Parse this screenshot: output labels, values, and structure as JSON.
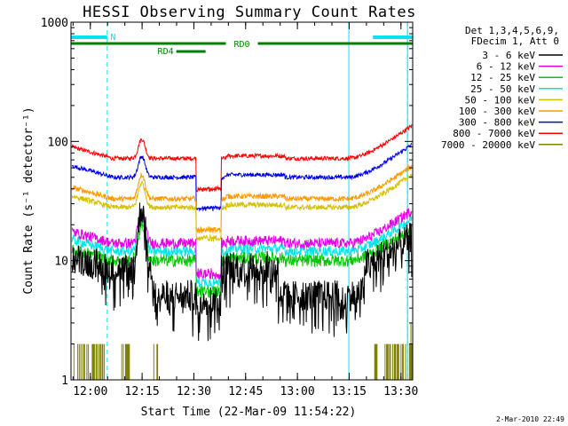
{
  "chart_data": {
    "type": "line",
    "title": "HESSI Observing Summary Count Rates",
    "xlabel": "Start Time (22-Mar-09 11:54:22)",
    "ylabel": "Count Rate (s⁻¹ detector⁻¹)",
    "yscale": "log",
    "ylim": [
      1,
      1000
    ],
    "xlim_minutes": [
      0,
      99
    ],
    "x_tick_labels": [
      "12:00",
      "12:15",
      "12:30",
      "12:45",
      "13:00",
      "13:15",
      "13:30"
    ],
    "x_tick_minutes": [
      5.6,
      20.6,
      35.6,
      50.6,
      65.6,
      80.6,
      95.6
    ],
    "y_tick_labels": [
      "1",
      "10",
      "100",
      "1000"
    ],
    "y_tick_values": [
      1,
      10,
      100,
      1000
    ],
    "legend_header": [
      "Det 1,3,4,5,6,9,",
      "FDecim 1, Att 0"
    ],
    "legend_position": "right",
    "series": [
      {
        "name": "3 - 6 keV",
        "color": "#000000",
        "level": 8.5,
        "noise": 0.3,
        "peak": 3.2,
        "quiet_drop": 0.6
      },
      {
        "name": "6 - 12 keV",
        "color": "#e600e6",
        "level": 14,
        "noise": 0.1,
        "peak": 1.8
      },
      {
        "name": "12 - 25 keV",
        "color": "#00c800",
        "level": 10,
        "noise": 0.12,
        "peak": 2.0
      },
      {
        "name": "25 - 50 keV",
        "color": "#00e6e6",
        "level": 12,
        "noise": 0.1,
        "peak": 1.8
      },
      {
        "name": "50 - 100 keV",
        "color": "#d4c000",
        "level": 28,
        "noise": 0.05,
        "peak": 1.6
      },
      {
        "name": "100 - 300 keV",
        "color": "#ff9900",
        "level": 33,
        "noise": 0.05,
        "peak": 1.6
      },
      {
        "name": "300 - 800 keV",
        "color": "#0000e6",
        "level": 50,
        "noise": 0.04,
        "peak": 1.5
      },
      {
        "name": "800 - 7000 keV",
        "color": "#ff0000",
        "level": 72,
        "noise": 0.04,
        "peak": 1.45
      },
      {
        "name": "7000 - 20000 keV",
        "color": "#808000",
        "level": 1,
        "noise": 0,
        "peak": 1
      }
    ],
    "flare_peak_minute": 20.5,
    "gap_minutes": [
      36.5,
      43.5
    ],
    "night_segments_minutes": [
      [
        0,
        10.5
      ],
      [
        87.5,
        99
      ]
    ],
    "night_label": "N",
    "night_color": "#00e6e6",
    "night_boundary_minutes": [
      10.5,
      97.5
    ],
    "saa_boundary_minutes": [
      80.5,
      97.5
    ],
    "rd0_segment_minutes": [
      0,
      99
    ],
    "rd0_label": "RD0",
    "rd4_segment_minutes": [
      30.5,
      39
    ],
    "rd4_label": "RD4",
    "rd_color": "#008000"
  },
  "footer": {
    "timestamp": "2-Mar-2010 22:49"
  }
}
